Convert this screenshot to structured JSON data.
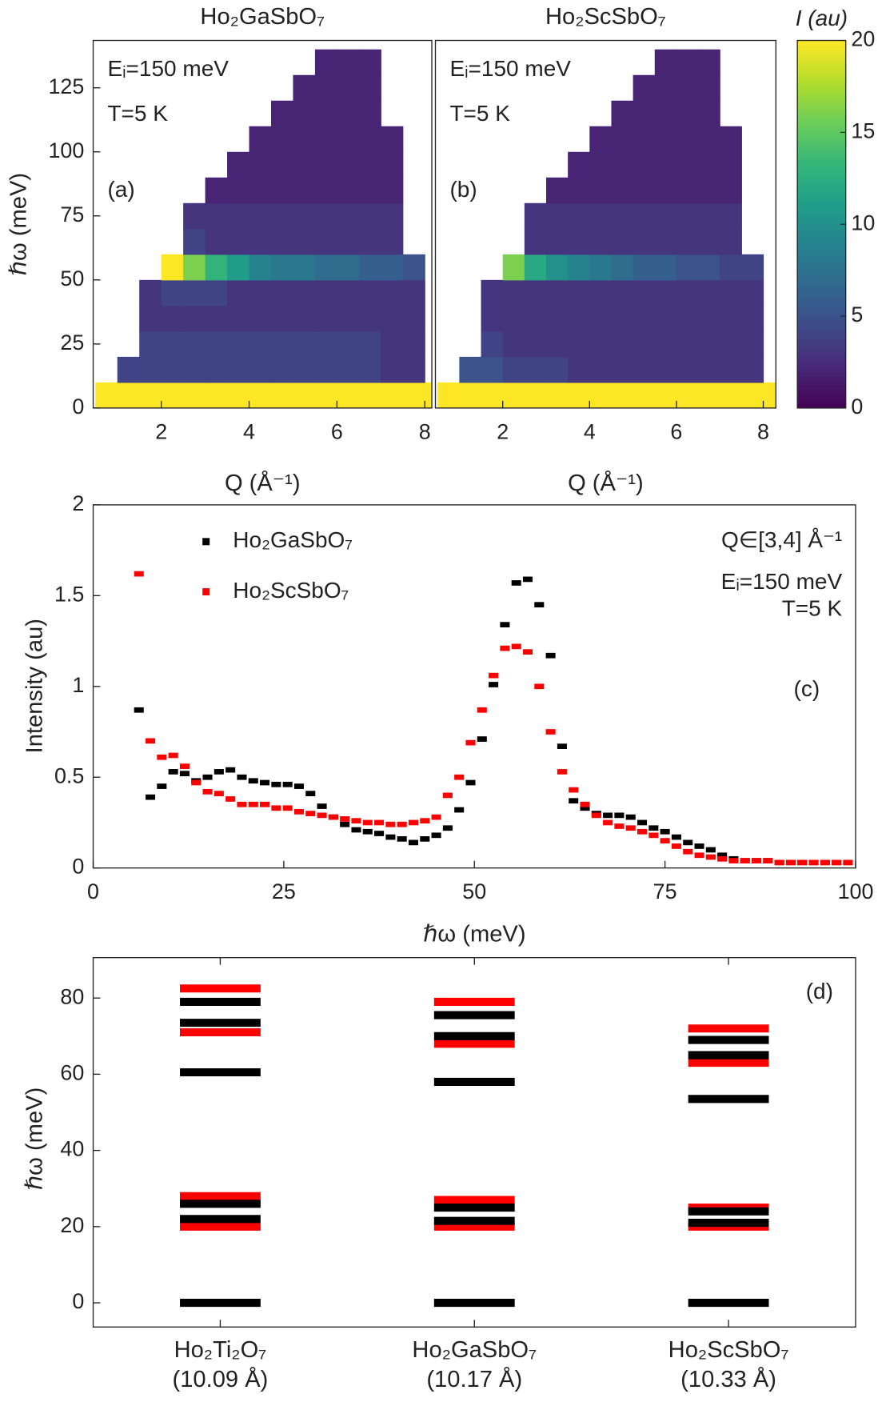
{
  "chart_data": [
    {
      "type": "heatmap",
      "title": "Ho₂GaSbO₇",
      "annotations": [
        "Eᵢ=150 meV",
        "T=5 K",
        "(a)"
      ],
      "xlabel": "Q (Å⁻¹)",
      "ylabel": "ℏω (meV)",
      "x_bins": [
        0.5,
        1,
        1.5,
        2,
        2.5,
        3,
        3.5,
        4,
        4.5,
        5,
        5.5,
        6,
        6.5,
        7,
        7.5,
        8,
        8.5
      ],
      "y_bins": [
        0,
        10,
        20,
        30,
        40,
        50,
        60,
        70,
        80,
        90,
        100,
        110,
        120,
        130,
        140
      ],
      "values": [
        [
          20,
          20,
          20,
          20,
          20,
          20,
          20,
          20,
          20,
          20,
          20,
          20,
          20,
          20,
          20,
          20
        ],
        [
          null,
          4,
          4,
          4,
          4,
          4,
          4,
          4,
          4,
          4,
          4,
          4,
          4,
          3,
          3,
          null
        ],
        [
          null,
          null,
          4,
          4,
          4,
          4,
          4,
          4,
          4,
          4,
          4,
          4,
          4,
          3,
          3,
          null
        ],
        [
          null,
          null,
          3,
          3,
          3,
          3,
          3,
          3,
          3,
          3,
          3,
          3,
          3,
          3,
          3,
          null
        ],
        [
          null,
          null,
          3,
          4,
          4,
          4,
          3,
          3,
          3,
          3,
          3,
          3,
          3,
          3,
          3,
          null
        ],
        [
          null,
          null,
          null,
          20,
          16,
          13,
          11,
          9,
          8,
          8,
          7,
          7,
          6,
          6,
          5,
          null
        ],
        [
          null,
          null,
          null,
          null,
          4,
          3,
          3,
          3,
          3,
          3,
          3,
          3,
          3,
          3,
          null,
          null
        ],
        [
          null,
          null,
          null,
          null,
          3,
          3,
          3,
          3,
          3,
          3,
          3,
          3,
          3,
          3,
          null,
          null
        ],
        [
          null,
          null,
          null,
          null,
          null,
          2,
          2,
          2,
          2,
          2,
          2,
          2,
          2,
          2,
          null,
          null
        ],
        [
          null,
          null,
          null,
          null,
          null,
          null,
          2,
          2,
          2,
          2,
          2,
          2,
          2,
          2,
          null,
          null
        ],
        [
          null,
          null,
          null,
          null,
          null,
          null,
          null,
          2,
          2,
          2,
          2,
          2,
          2,
          2,
          null,
          null
        ],
        [
          null,
          null,
          null,
          null,
          null,
          null,
          null,
          null,
          2,
          2,
          2,
          2,
          2,
          null,
          null,
          null
        ],
        [
          null,
          null,
          null,
          null,
          null,
          null,
          null,
          null,
          null,
          2,
          2,
          2,
          2,
          null,
          null,
          null
        ],
        [
          null,
          null,
          null,
          null,
          null,
          null,
          null,
          null,
          null,
          null,
          2,
          2,
          2,
          null,
          null,
          null
        ]
      ],
      "xlim": [
        0.45,
        8.16
      ],
      "ylim": [
        0,
        143.5
      ],
      "xticks": [
        2,
        4,
        6,
        8
      ],
      "yticks": [
        0,
        25,
        50,
        75,
        100,
        125
      ],
      "colormap": "viridis",
      "clim": [
        0,
        20
      ]
    },
    {
      "type": "heatmap",
      "title": "Ho₂ScSbO₇",
      "annotations": [
        "Eᵢ=150 meV",
        "T=5 K",
        "(b)"
      ],
      "xlabel": "Q (Å⁻¹)",
      "x_bins": [
        0.5,
        1,
        1.5,
        2,
        2.5,
        3,
        3.5,
        4,
        4.5,
        5,
        5.5,
        6,
        6.5,
        7,
        7.5,
        8,
        8.5
      ],
      "y_bins": [
        0,
        10,
        20,
        30,
        40,
        50,
        60,
        70,
        80,
        90,
        100,
        110,
        120,
        130,
        140
      ],
      "values": [
        [
          20,
          20,
          20,
          20,
          20,
          20,
          20,
          20,
          20,
          20,
          20,
          20,
          20,
          20,
          20,
          20
        ],
        [
          null,
          5,
          5,
          4,
          4,
          4,
          3,
          3,
          3,
          3,
          3,
          3,
          3,
          3,
          3,
          null
        ],
        [
          null,
          null,
          4,
          3,
          3,
          3,
          3,
          3,
          3,
          3,
          3,
          3,
          3,
          3,
          3,
          null
        ],
        [
          null,
          null,
          3,
          3,
          3,
          3,
          3,
          3,
          3,
          3,
          3,
          3,
          3,
          3,
          3,
          null
        ],
        [
          null,
          null,
          3,
          3,
          3,
          3,
          3,
          3,
          3,
          3,
          3,
          3,
          3,
          3,
          3,
          null
        ],
        [
          null,
          null,
          null,
          16,
          12,
          10,
          9,
          8,
          7,
          6,
          6,
          5,
          5,
          4,
          4,
          null
        ],
        [
          null,
          null,
          null,
          null,
          3,
          3,
          3,
          3,
          3,
          3,
          3,
          3,
          3,
          3,
          null,
          null
        ],
        [
          null,
          null,
          null,
          null,
          3,
          3,
          3,
          3,
          3,
          3,
          3,
          3,
          3,
          3,
          null,
          null
        ],
        [
          null,
          null,
          null,
          null,
          null,
          2,
          2,
          2,
          2,
          2,
          2,
          2,
          2,
          2,
          null,
          null
        ],
        [
          null,
          null,
          null,
          null,
          null,
          null,
          2,
          2,
          2,
          2,
          2,
          2,
          2,
          2,
          null,
          null
        ],
        [
          null,
          null,
          null,
          null,
          null,
          null,
          null,
          2,
          2,
          2,
          2,
          2,
          2,
          2,
          null,
          null
        ],
        [
          null,
          null,
          null,
          null,
          null,
          null,
          null,
          null,
          2,
          2,
          2,
          2,
          2,
          null,
          null,
          null
        ],
        [
          null,
          null,
          null,
          null,
          null,
          null,
          null,
          null,
          null,
          2,
          2,
          2,
          2,
          null,
          null,
          null
        ],
        [
          null,
          null,
          null,
          null,
          null,
          null,
          null,
          null,
          null,
          null,
          2,
          2,
          2,
          null,
          null,
          null
        ]
      ],
      "xlim": [
        0.45,
        8.29
      ],
      "ylim": [
        0,
        143.5
      ],
      "xticks": [
        2,
        4,
        6,
        8
      ],
      "colormap": "viridis",
      "clim": [
        0,
        20
      ],
      "cticks": [
        0,
        5,
        10,
        15,
        20
      ],
      "clabel": "I (au)"
    },
    {
      "type": "scatter",
      "annotations": [
        "Q∈[3,4] Å⁻¹",
        "Eᵢ=150 meV",
        "T=5 K",
        "(c)"
      ],
      "xlabel": "ℏω (meV)",
      "ylabel": "Intensity (au)",
      "x": [
        6,
        7.5,
        9,
        10.5,
        12,
        13.5,
        15,
        16.5,
        18,
        19.5,
        21,
        22.5,
        24,
        25.5,
        27,
        28.5,
        30,
        31.5,
        33,
        34.5,
        36,
        37.5,
        39,
        40.5,
        42,
        43.5,
        45,
        46.5,
        48,
        49.5,
        51,
        52.5,
        54,
        55.5,
        57,
        58.5,
        60,
        61.5,
        63,
        64.5,
        66,
        67.5,
        69,
        70.5,
        72,
        73.5,
        75,
        76.5,
        78,
        79.5,
        81,
        82.5,
        84,
        85.5,
        87,
        88.5,
        90,
        91.5,
        93,
        94.5,
        96,
        97.5,
        99
      ],
      "series": [
        {
          "name": "Ho₂GaSbO₇",
          "color": "#000000",
          "values": [
            0.87,
            0.39,
            0.45,
            0.53,
            0.52,
            0.48,
            0.5,
            0.53,
            0.54,
            0.5,
            0.48,
            0.47,
            0.46,
            0.46,
            0.45,
            0.41,
            0.34,
            0.28,
            0.24,
            0.21,
            0.2,
            0.19,
            0.17,
            0.16,
            0.14,
            0.16,
            0.18,
            0.22,
            0.32,
            0.47,
            0.71,
            1.01,
            1.34,
            1.57,
            1.59,
            1.45,
            1.17,
            0.67,
            0.37,
            0.33,
            0.3,
            0.29,
            0.29,
            0.28,
            0.25,
            0.22,
            0.2,
            0.17,
            0.14,
            0.12,
            0.1,
            0.07,
            0.05,
            0.04,
            0.04,
            0.04,
            0.03,
            0.03,
            0.03,
            0.03,
            0.03,
            0.03,
            0.03
          ]
        },
        {
          "name": "Ho₂ScSbO₇",
          "color": "#ff0000",
          "values": [
            1.62,
            0.7,
            0.61,
            0.62,
            0.56,
            0.47,
            0.42,
            0.41,
            0.38,
            0.35,
            0.35,
            0.35,
            0.33,
            0.33,
            0.31,
            0.3,
            0.29,
            0.28,
            0.27,
            0.26,
            0.25,
            0.25,
            0.24,
            0.24,
            0.25,
            0.26,
            0.28,
            0.4,
            0.5,
            0.69,
            0.87,
            1.06,
            1.21,
            1.22,
            1.19,
            1.0,
            0.75,
            0.53,
            0.43,
            0.35,
            0.29,
            0.25,
            0.23,
            0.22,
            0.2,
            0.18,
            0.15,
            0.12,
            0.09,
            0.07,
            0.06,
            0.05,
            0.04,
            0.04,
            0.04,
            0.04,
            0.03,
            0.03,
            0.03,
            0.03,
            0.03,
            0.03,
            0.03
          ]
        }
      ],
      "xlim": [
        0,
        100
      ],
      "ylim": [
        0,
        2
      ],
      "xticks": [
        0,
        25,
        50,
        75,
        100
      ],
      "yticks": [
        0,
        0.5,
        1,
        1.5,
        2
      ],
      "legend": "upper left"
    },
    {
      "type": "levels",
      "annotations": [
        "(d)"
      ],
      "ylabel": "ℏω (meV)",
      "categories": [
        "Ho₂Ti₂O₇",
        "Ho₂GaSbO₇",
        "Ho₂ScSbO₇"
      ],
      "category_sublabels": [
        "(10.09 Å)",
        "(10.17 Å)",
        "(10.33 Å)"
      ],
      "series": [
        {
          "color": "#ff0000",
          "values": [
            [
              82.5,
              71,
              28,
              20
            ],
            [
              79,
              68,
              27,
              20
            ],
            [
              72,
              63,
              25,
              20
            ]
          ]
        },
        {
          "color": "#000000",
          "values": [
            [
              79,
              73.5,
              60.5,
              26,
              22,
              0
            ],
            [
              75.5,
              70,
              58,
              25,
              21.5,
              0
            ],
            [
              69,
              65,
              53.5,
              24,
              21,
              0
            ]
          ]
        }
      ],
      "ylim": [
        -6.35,
        90.6
      ],
      "yticks": [
        0,
        20,
        40,
        60,
        80
      ]
    }
  ]
}
